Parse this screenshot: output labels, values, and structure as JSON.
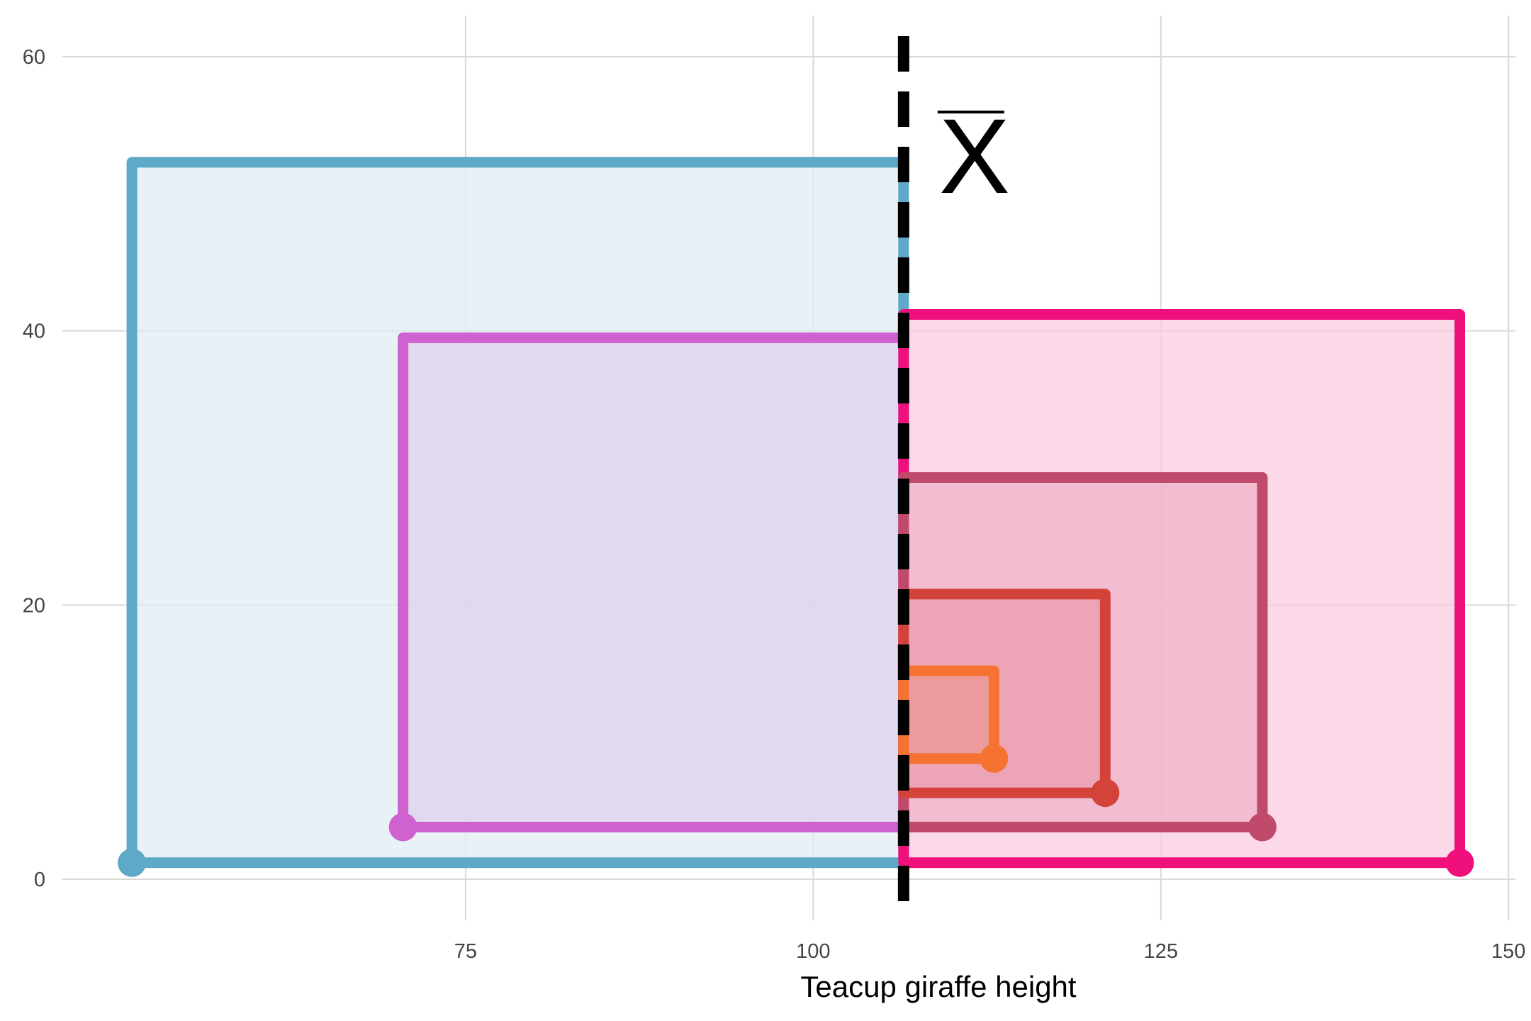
{
  "chart_data": {
    "type": "scatter",
    "title": "",
    "xlabel": "Teacup giraffe height",
    "ylabel": "",
    "xlim": [
      46,
      150.5
    ],
    "ylim": [
      -3,
      63
    ],
    "x_ticks": [
      75,
      100,
      125,
      150
    ],
    "y_ticks": [
      0,
      20,
      40,
      60
    ],
    "x_tick_labels": [
      "75",
      "100",
      "125",
      "150"
    ],
    "y_tick_labels": [
      "0",
      "20",
      "40",
      "60"
    ],
    "grid": true,
    "mean": {
      "x": 106.5,
      "label": "X",
      "label_has_overbar": true,
      "line_style": "dashed",
      "color": "#000000"
    },
    "series": [
      {
        "x": 51.0,
        "y_base": 1.2,
        "y_top": 52.3,
        "stroke": "#5ea8c8",
        "fill": "#dfecf2"
      },
      {
        "x": 70.5,
        "y_base": 3.8,
        "y_top": 39.5,
        "stroke": "#cf62cf",
        "fill": "#dcd0ec"
      },
      {
        "x": 146.5,
        "y_base": 1.2,
        "y_top": 41.2,
        "stroke": "#f0107c",
        "fill": "#f9cadf"
      },
      {
        "x": 132.3,
        "y_base": 3.8,
        "y_top": 29.3,
        "stroke": "#c04a6c",
        "fill": "#efb1c8"
      },
      {
        "x": 121.0,
        "y_base": 6.3,
        "y_top": 20.8,
        "stroke": "#d4433a",
        "fill": "#e99aac"
      },
      {
        "x": 113.0,
        "y_base": 8.8,
        "y_top": 15.2,
        "stroke": "#f57230",
        "fill": "#eb9590"
      }
    ]
  }
}
